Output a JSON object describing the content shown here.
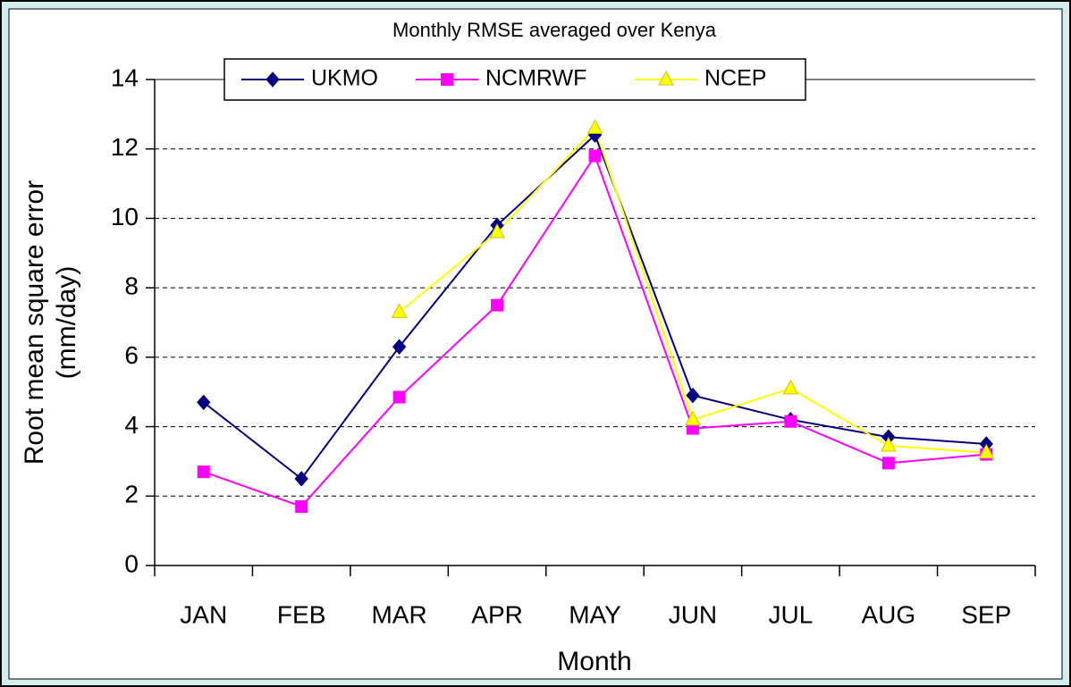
{
  "chart_data": {
    "type": "line",
    "title": "Monthly RMSE averaged over Kenya",
    "xlabel": "Month",
    "ylabel": [
      "Root mean square error",
      "(mm/day)"
    ],
    "categories": [
      "JAN",
      "FEB",
      "MAR",
      "APR",
      "MAY",
      "JUN",
      "JUL",
      "AUG",
      "SEP"
    ],
    "series": [
      {
        "name": "UKMO",
        "color": "#000080",
        "marker": "diamond",
        "values": [
          4.7,
          2.5,
          6.3,
          9.8,
          12.4,
          4.9,
          4.2,
          3.7,
          3.5
        ]
      },
      {
        "name": "NCMRWF",
        "color": "#ff00ff",
        "marker": "square",
        "values": [
          2.7,
          1.7,
          4.85,
          7.5,
          11.8,
          3.95,
          4.15,
          2.95,
          3.2
        ]
      },
      {
        "name": "NCEP",
        "color": "#ffff00",
        "marker": "triangle",
        "values": [
          null,
          null,
          7.3,
          9.6,
          12.6,
          4.2,
          5.1,
          3.45,
          3.25
        ]
      }
    ],
    "ylim": [
      0,
      14
    ],
    "yticks": [
      0,
      2,
      4,
      6,
      8,
      10,
      12,
      14
    ],
    "grid": true,
    "legend": "top"
  }
}
